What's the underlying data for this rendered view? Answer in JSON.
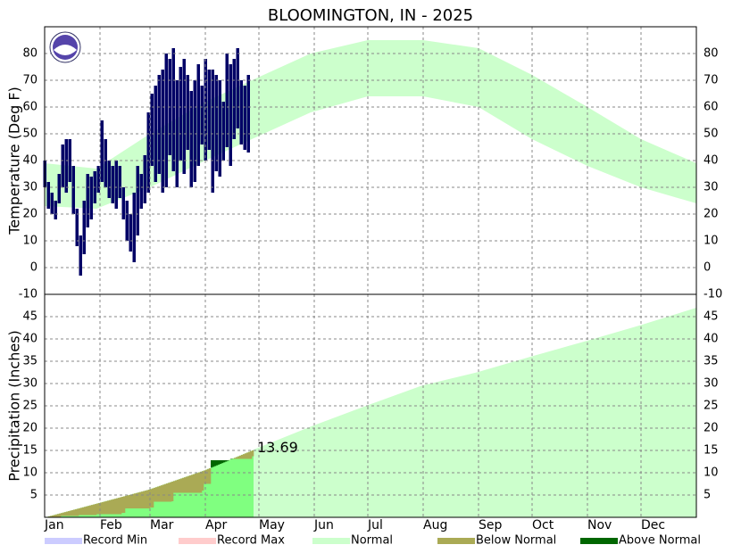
{
  "chart_data": [
    {
      "type": "band-bar",
      "title": "BLOOMINGTON, IN - 2025",
      "y_label": "Temperature (Deg F)",
      "xlim": [
        1,
        366
      ],
      "xticks": [
        32,
        60,
        91,
        121,
        152,
        182,
        213,
        244,
        274,
        305,
        335
      ],
      "ylim": [
        -10,
        90
      ],
      "yticks": [
        -10,
        0,
        10,
        20,
        30,
        40,
        50,
        60,
        70,
        80
      ],
      "grid": true,
      "color": "#000066",
      "x": [
        1,
        3,
        5,
        7,
        9,
        11,
        13,
        15,
        17,
        19,
        21,
        23,
        25,
        27,
        29,
        31,
        33,
        35,
        37,
        39,
        41,
        43,
        45,
        47,
        49,
        51,
        53,
        55,
        57,
        59,
        61,
        63,
        65,
        67,
        69,
        71,
        73,
        75,
        77,
        79,
        81,
        83,
        85,
        87,
        89,
        91,
        93,
        95,
        97,
        99,
        101,
        103,
        105,
        107,
        109,
        111,
        113,
        115
      ],
      "low": [
        30,
        22,
        20,
        18,
        24,
        30,
        28,
        32,
        20,
        8,
        -3,
        5,
        15,
        18,
        24,
        28,
        32,
        30,
        26,
        24,
        22,
        26,
        18,
        10,
        6,
        2,
        12,
        22,
        24,
        28,
        38,
        32,
        35,
        28,
        30,
        42,
        36,
        30,
        40,
        35,
        44,
        30,
        32,
        38,
        46,
        40,
        44,
        28,
        36,
        34,
        40,
        45,
        38,
        48,
        52,
        46,
        44,
        43
      ],
      "high": [
        40,
        32,
        28,
        25,
        35,
        46,
        48,
        48,
        38,
        22,
        12,
        25,
        35,
        34,
        36,
        38,
        55,
        48,
        40,
        38,
        40,
        38,
        30,
        25,
        20,
        28,
        38,
        35,
        42,
        58,
        65,
        68,
        72,
        74,
        80,
        78,
        82,
        70,
        75,
        78,
        72,
        66,
        70,
        76,
        68,
        78,
        74,
        74,
        72,
        70,
        62,
        80,
        76,
        78,
        82,
        70,
        68,
        72
      ],
      "normal": {
        "x": [
          1,
          30,
          60,
          91,
          117,
          150,
          182,
          213,
          244,
          274,
          305,
          335,
          366
        ],
        "low": [
          23,
          22,
          30,
          40,
          48,
          58,
          64,
          64,
          60,
          48,
          38,
          30,
          24
        ],
        "high": [
          39,
          37,
          50,
          62,
          70,
          80,
          85,
          85,
          82,
          72,
          60,
          48,
          39
        ]
      }
    },
    {
      "type": "cumulative",
      "y_label": "Precipitation (Inches)",
      "xlim": [
        1,
        366
      ],
      "xticks": [
        {
          "value": 1,
          "label": "Jan"
        },
        {
          "value": 32,
          "label": "Feb"
        },
        {
          "value": 60,
          "label": "Mar"
        },
        {
          "value": 91,
          "label": "Apr"
        },
        {
          "value": 121,
          "label": "May"
        },
        {
          "value": 152,
          "label": "Jun"
        },
        {
          "value": 182,
          "label": "Jul"
        },
        {
          "value": 213,
          "label": "Aug"
        },
        {
          "value": 244,
          "label": "Sep"
        },
        {
          "value": 274,
          "label": "Oct"
        },
        {
          "value": 305,
          "label": "Nov"
        },
        {
          "value": 335,
          "label": "Dec"
        }
      ],
      "ylim": [
        0,
        50
      ],
      "yticks": [
        5,
        10,
        15,
        20,
        25,
        30,
        35,
        40,
        45
      ],
      "grid": true,
      "color": "#80ff80",
      "x": [
        1,
        10,
        20,
        30,
        44,
        46,
        60,
        62,
        72,
        73,
        89,
        90,
        94,
        105,
        117
      ],
      "values": [
        0,
        0.3,
        0.5,
        0.7,
        1,
        2,
        2.2,
        3.5,
        3.6,
        5.5,
        6,
        7.5,
        12.8,
        13.1,
        13.69
      ],
      "normal": {
        "x": [
          1,
          31,
          59,
          90,
          120,
          151,
          181,
          212,
          243,
          273,
          304,
          334,
          366
        ],
        "values": [
          0,
          3.2,
          6.2,
          10.5,
          15.5,
          20.5,
          25,
          29.5,
          32.5,
          36,
          39.5,
          43,
          47
        ]
      }
    }
  ],
  "legend": [
    {
      "name": "Record Min",
      "color": "#ccccff"
    },
    {
      "name": "Record Max",
      "color": "#ffcccc"
    },
    {
      "name": "Normal",
      "color": "#ccffcc"
    },
    {
      "name": "Below Normal",
      "color": "#aaaa55"
    },
    {
      "name": "Above Normal",
      "color": "#006600"
    }
  ]
}
